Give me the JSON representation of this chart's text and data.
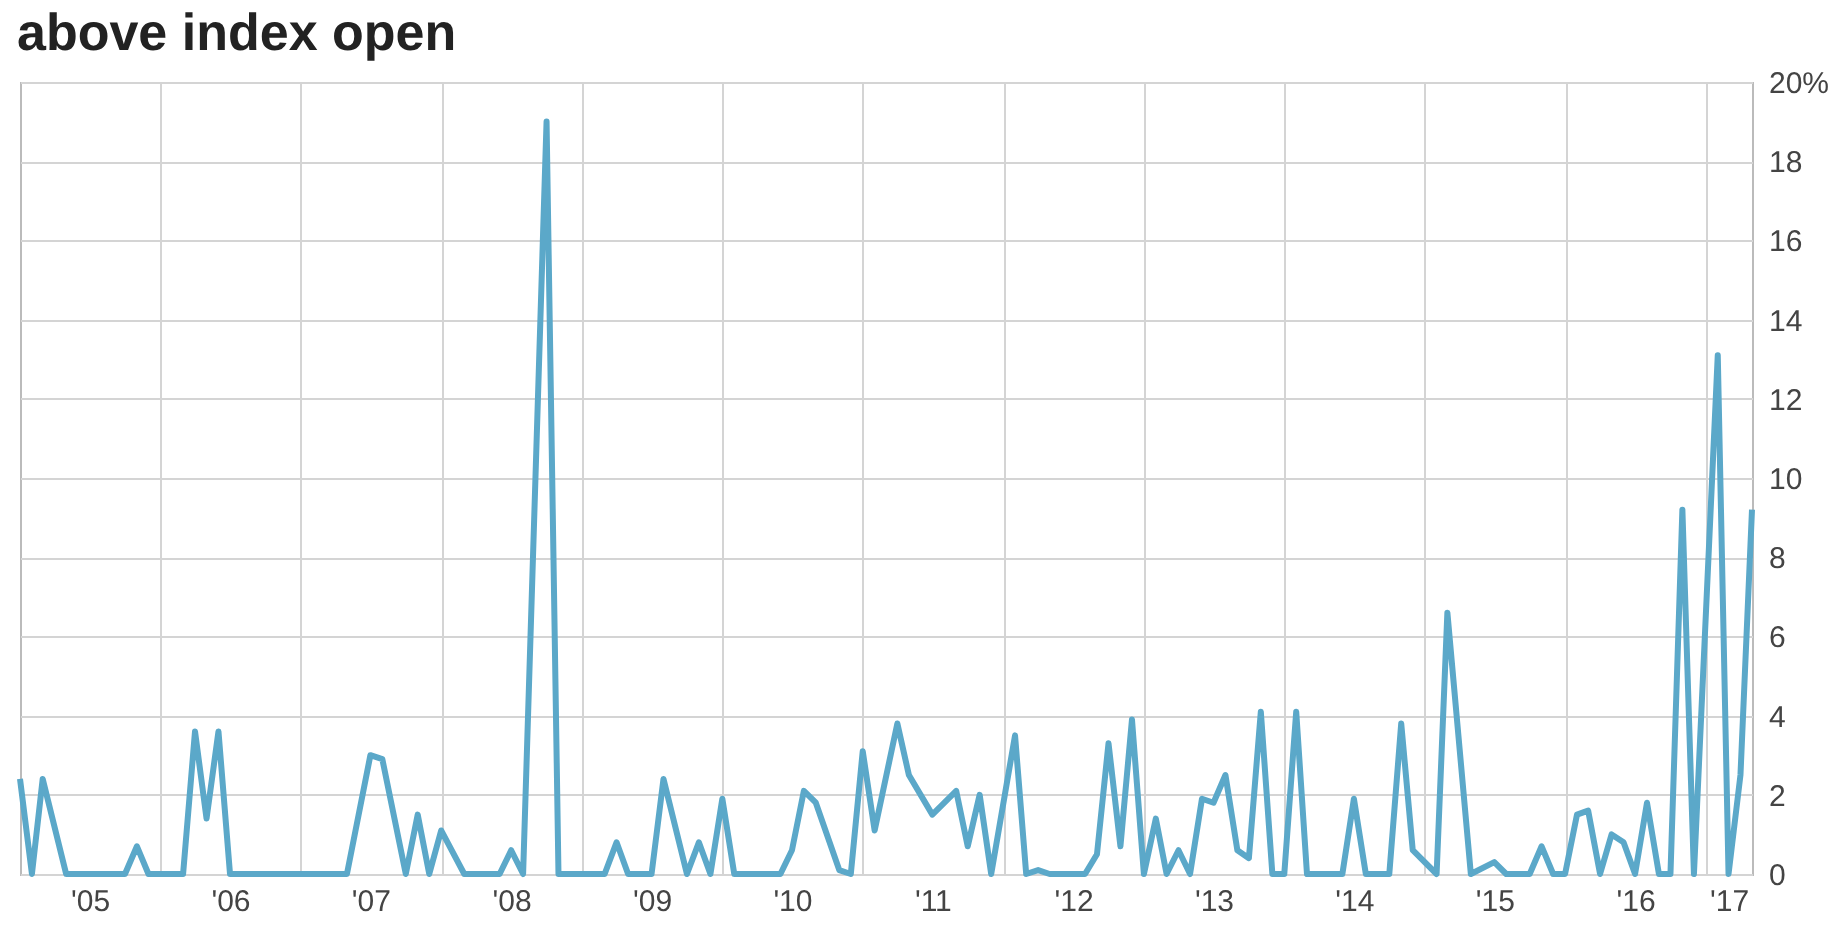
{
  "chart_data": {
    "type": "line",
    "title": "above index open",
    "x": [
      "2005-01",
      "2005-02",
      "2005-03",
      "2005-05",
      "2005-10",
      "2005-11",
      "2005-12",
      "2006-03",
      "2006-04",
      "2006-05",
      "2006-06",
      "2006-07",
      "2007-05",
      "2007-07",
      "2007-08",
      "2007-10",
      "2007-11",
      "2007-12",
      "2008-01",
      "2008-03",
      "2008-06",
      "2008-07",
      "2008-08",
      "2008-10",
      "2008-11",
      "2009-03",
      "2009-04",
      "2009-05",
      "2009-07",
      "2009-08",
      "2009-10",
      "2009-11",
      "2009-12",
      "2010-01",
      "2010-02",
      "2010-06",
      "2010-07",
      "2010-08",
      "2010-09",
      "2010-11",
      "2010-12",
      "2011-01",
      "2011-02",
      "2011-04",
      "2011-05",
      "2011-07",
      "2011-09",
      "2011-10",
      "2011-11",
      "2011-12",
      "2012-02",
      "2012-03",
      "2012-04",
      "2012-05",
      "2012-08",
      "2012-09",
      "2012-10",
      "2012-11",
      "2012-12",
      "2013-01",
      "2013-02",
      "2013-03",
      "2013-04",
      "2013-05",
      "2013-06",
      "2013-07",
      "2013-08",
      "2013-09",
      "2013-10",
      "2013-11",
      "2013-12",
      "2014-01",
      "2014-02",
      "2014-03",
      "2014-06",
      "2014-07",
      "2014-08",
      "2014-10",
      "2014-11",
      "2014-12",
      "2015-02",
      "2015-03",
      "2015-05",
      "2015-07",
      "2015-08",
      "2015-10",
      "2015-11",
      "2015-12",
      "2016-01",
      "2016-02",
      "2016-03",
      "2016-04",
      "2016-05",
      "2016-06",
      "2016-07",
      "2016-08",
      "2016-09",
      "2016-10",
      "2016-11",
      "2016-12",
      "2017-02",
      "2017-03",
      "2017-04",
      "2017-05"
    ],
    "series": [
      {
        "color": "#5ba8c9",
        "values": [
          2.4,
          0,
          2.4,
          0,
          0,
          0.7,
          0,
          0,
          3.6,
          1.4,
          3.6,
          0,
          0,
          3.0,
          2.9,
          0,
          1.5,
          0,
          1.1,
          0,
          0,
          0.6,
          0,
          19.0,
          0,
          0,
          0.8,
          0,
          0,
          2.4,
          0,
          0.8,
          0,
          1.9,
          0,
          0,
          0.6,
          2.1,
          1.8,
          0.1,
          0,
          3.1,
          1.1,
          3.8,
          2.5,
          1.5,
          2.1,
          0.7,
          2.0,
          0,
          3.5,
          0,
          0.1,
          0,
          0,
          0.5,
          3.3,
          0.7,
          3.9,
          0,
          1.4,
          0,
          0.6,
          0,
          1.9,
          1.8,
          2.5,
          0.6,
          0.4,
          4.1,
          0,
          0,
          4.1,
          0,
          0,
          1.9,
          0,
          0,
          3.8,
          0.6,
          0,
          6.6,
          0,
          0.3,
          0,
          0,
          0.7,
          0,
          0,
          1.5,
          1.6,
          0,
          1.0,
          0.8,
          0,
          1.8,
          0,
          0,
          9.2,
          0,
          13.1,
          0,
          2.5,
          9.2
        ]
      }
    ],
    "xlim": [
      "2005-01",
      "2017-05"
    ],
    "xticks": [
      {
        "value": "2005-07",
        "label": "'05"
      },
      {
        "value": "2006-01",
        "label": null
      },
      {
        "value": "2006-07",
        "label": "'06"
      },
      {
        "value": "2007-01",
        "label": null
      },
      {
        "value": "2007-07",
        "label": "'07"
      },
      {
        "value": "2008-01",
        "label": null
      },
      {
        "value": "2008-07",
        "label": "'08"
      },
      {
        "value": "2009-01",
        "label": null
      },
      {
        "value": "2009-07",
        "label": "'09"
      },
      {
        "value": "2010-01",
        "label": null
      },
      {
        "value": "2010-07",
        "label": "'10"
      },
      {
        "value": "2011-01",
        "label": null
      },
      {
        "value": "2011-07",
        "label": "'11"
      },
      {
        "value": "2012-01",
        "label": null
      },
      {
        "value": "2012-07",
        "label": "'12"
      },
      {
        "value": "2013-01",
        "label": null
      },
      {
        "value": "2013-07",
        "label": "'13"
      },
      {
        "value": "2014-01",
        "label": null
      },
      {
        "value": "2014-07",
        "label": "'14"
      },
      {
        "value": "2015-01",
        "label": null
      },
      {
        "value": "2015-07",
        "label": "'15"
      },
      {
        "value": "2016-01",
        "label": null
      },
      {
        "value": "2016-07",
        "label": "'16"
      },
      {
        "value": "2017-01",
        "label": null
      },
      {
        "value": "2017-03",
        "label": "'17"
      }
    ],
    "ylim": [
      0,
      20
    ],
    "yticks": [
      {
        "value": 0,
        "label": "0"
      },
      {
        "value": 2,
        "label": "2"
      },
      {
        "value": 4,
        "label": "4"
      },
      {
        "value": 6,
        "label": "6"
      },
      {
        "value": 8,
        "label": "8"
      },
      {
        "value": 10,
        "label": "10"
      },
      {
        "value": 12,
        "label": "12"
      },
      {
        "value": 14,
        "label": "14"
      },
      {
        "value": 16,
        "label": "16"
      },
      {
        "value": 18,
        "label": "18"
      },
      {
        "value": 20,
        "label": "20%"
      }
    ],
    "grid": true,
    "marker": "none",
    "line_style": "solid"
  }
}
